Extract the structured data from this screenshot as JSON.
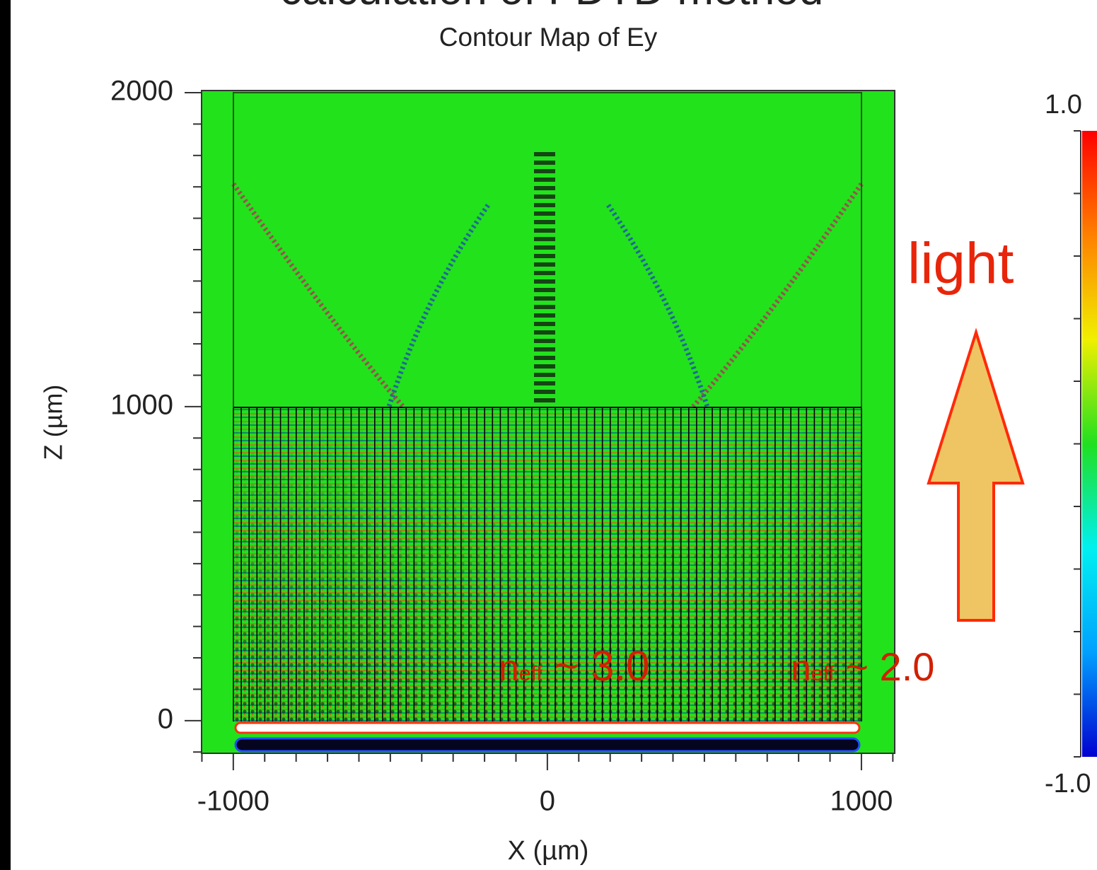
{
  "chart_data": {
    "type": "contour",
    "title": "calculation of FDTD method",
    "subtitle": "Contour Map of Ey",
    "x_label": "X (µm)",
    "y_label": "Z (µm)",
    "xlim": [
      -1101,
      1106
    ],
    "ylim": [
      -104,
      2000
    ],
    "xticks": [
      -1000,
      0,
      1000
    ],
    "yticks": [
      0,
      1000,
      2000
    ],
    "xminorticks": [
      -1100,
      -900,
      -800,
      -700,
      -600,
      -500,
      -400,
      -300,
      -200,
      -100,
      100,
      200,
      300,
      400,
      500,
      600,
      700,
      800,
      900,
      1100
    ],
    "yminorticks": [
      -100,
      100,
      200,
      300,
      400,
      500,
      600,
      700,
      800,
      900,
      1100,
      1200,
      1300,
      1400,
      1500,
      1600,
      1700,
      1800,
      1900
    ],
    "colorbar": {
      "range": [
        -1,
        1
      ],
      "ticks": [
        {
          "value": 1,
          "label": "1.0"
        },
        0.8,
        0.6,
        0.4,
        0.2,
        0,
        -0.2,
        -0.4,
        -0.6,
        -0.8,
        {
          "value": -1,
          "label": "-1.0"
        }
      ],
      "colors": [
        "#0000d0",
        "#00a0ff",
        "#00f0f0",
        "#20e020",
        "#f0f000",
        "#ff8000",
        "#ff0000"
      ]
    },
    "annotations": {
      "arrow_label": "light",
      "neff_center": {
        "main": "n",
        "sub": "eff",
        "rest": " ~ 3.0"
      },
      "neff_edge": {
        "main": "n",
        "sub": "eff",
        "rest": " ~ 2.0"
      }
    },
    "field_color": "#22e21c"
  }
}
